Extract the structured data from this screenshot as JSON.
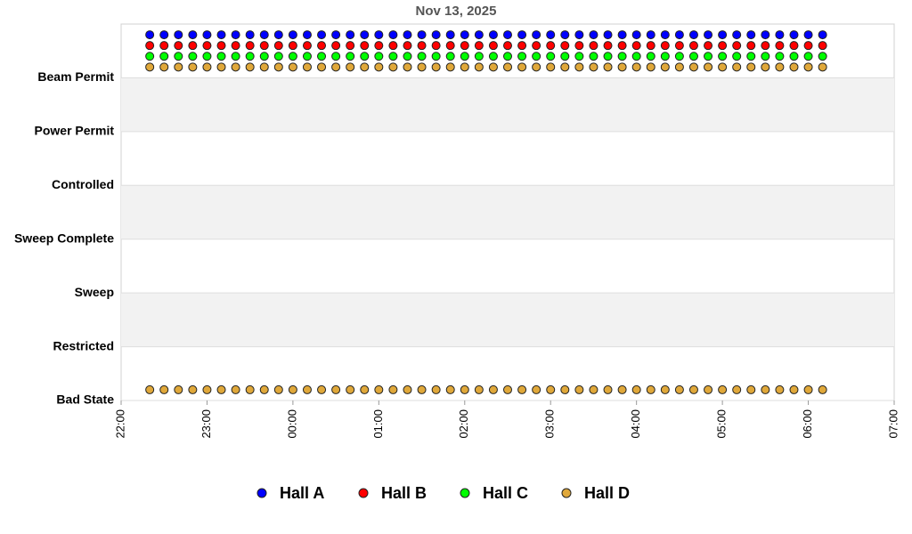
{
  "chart_data": {
    "type": "scatter",
    "title": "Nov 13, 2025",
    "x": [
      "22:20",
      "22:30",
      "22:40",
      "22:50",
      "23:00",
      "23:10",
      "23:20",
      "23:30",
      "23:40",
      "23:50",
      "00:00",
      "00:10",
      "00:20",
      "00:30",
      "00:40",
      "00:50",
      "01:00",
      "01:10",
      "01:20",
      "01:30",
      "01:40",
      "01:50",
      "02:00",
      "02:10",
      "02:20",
      "02:30",
      "02:40",
      "02:50",
      "03:00",
      "03:10",
      "03:20",
      "03:30",
      "03:40",
      "03:50",
      "04:00",
      "04:10",
      "04:20",
      "04:30",
      "04:40",
      "04:50",
      "05:00",
      "05:10",
      "05:20",
      "05:30",
      "05:40",
      "05:50",
      "06:00",
      "06:10"
    ],
    "series": [
      {
        "name": "Hall A",
        "color": "#0000ff",
        "values": [
          6.8,
          6.8,
          6.8,
          6.8,
          6.8,
          6.8,
          6.8,
          6.8,
          6.8,
          6.8,
          6.8,
          6.8,
          6.8,
          6.8,
          6.8,
          6.8,
          6.8,
          6.8,
          6.8,
          6.8,
          6.8,
          6.8,
          6.8,
          6.8,
          6.8,
          6.8,
          6.8,
          6.8,
          6.8,
          6.8,
          6.8,
          6.8,
          6.8,
          6.8,
          6.8,
          6.8,
          6.8,
          6.8,
          6.8,
          6.8,
          6.8,
          6.8,
          6.8,
          6.8,
          6.8,
          6.8,
          6.8,
          6.8
        ]
      },
      {
        "name": "Hall B",
        "color": "#ff0000",
        "values": [
          6.6,
          6.6,
          6.6,
          6.6,
          6.6,
          6.6,
          6.6,
          6.6,
          6.6,
          6.6,
          6.6,
          6.6,
          6.6,
          6.6,
          6.6,
          6.6,
          6.6,
          6.6,
          6.6,
          6.6,
          6.6,
          6.6,
          6.6,
          6.6,
          6.6,
          6.6,
          6.6,
          6.6,
          6.6,
          6.6,
          6.6,
          6.6,
          6.6,
          6.6,
          6.6,
          6.6,
          6.6,
          6.6,
          6.6,
          6.6,
          6.6,
          6.6,
          6.6,
          6.6,
          6.6,
          6.6,
          6.6,
          6.6
        ]
      },
      {
        "name": "Hall C",
        "color": "#00ff00",
        "values": [
          6.4,
          6.4,
          6.4,
          6.4,
          6.4,
          6.4,
          6.4,
          6.4,
          6.4,
          6.4,
          6.4,
          6.4,
          6.4,
          6.4,
          6.4,
          6.4,
          6.4,
          6.4,
          6.4,
          6.4,
          6.4,
          6.4,
          6.4,
          6.4,
          6.4,
          6.4,
          6.4,
          6.4,
          6.4,
          6.4,
          6.4,
          6.4,
          6.4,
          6.4,
          6.4,
          6.4,
          6.4,
          6.4,
          6.4,
          6.4,
          6.4,
          6.4,
          6.4,
          6.4,
          6.4,
          6.4,
          6.4,
          6.4
        ]
      },
      {
        "name": "Hall D",
        "color": "#e0a83a",
        "x": [
          "22:20",
          "22:30",
          "22:40",
          "22:50",
          "23:00",
          "23:10",
          "23:20",
          "23:30",
          "23:40",
          "23:50",
          "00:00",
          "00:10",
          "00:20",
          "00:30",
          "00:40",
          "00:50",
          "01:00",
          "01:10",
          "01:20",
          "01:30",
          "01:40",
          "01:50",
          "02:00",
          "02:10",
          "02:20",
          "02:30",
          "02:40",
          "02:50",
          "03:00",
          "03:10",
          "03:20",
          "03:30",
          "03:40",
          "03:50",
          "04:00",
          "04:10",
          "04:20",
          "04:30",
          "04:40",
          "04:50",
          "05:00",
          "05:10",
          "05:20",
          "05:30",
          "05:40",
          "05:50",
          "06:00",
          "06:10",
          "22:20",
          "22:30",
          "22:40",
          "22:50",
          "23:00",
          "23:10",
          "23:20",
          "23:30",
          "23:40",
          "23:50",
          "00:00",
          "00:10",
          "00:20",
          "00:30",
          "00:40",
          "00:50",
          "01:00",
          "01:10",
          "01:20",
          "01:30",
          "01:40",
          "01:50",
          "02:00",
          "02:10",
          "02:20",
          "02:30",
          "02:40",
          "02:50",
          "03:00",
          "03:10",
          "03:20",
          "03:30",
          "03:40",
          "03:50",
          "04:00",
          "04:10",
          "04:20",
          "04:30",
          "04:40",
          "04:50",
          "05:00",
          "05:10",
          "05:20",
          "05:30",
          "05:40",
          "05:50",
          "06:00",
          "06:10"
        ],
        "values": [
          6.2,
          6.2,
          6.2,
          6.2,
          6.2,
          6.2,
          6.2,
          6.2,
          6.2,
          6.2,
          6.2,
          6.2,
          6.2,
          6.2,
          6.2,
          6.2,
          6.2,
          6.2,
          6.2,
          6.2,
          6.2,
          6.2,
          6.2,
          6.2,
          6.2,
          6.2,
          6.2,
          6.2,
          6.2,
          6.2,
          6.2,
          6.2,
          6.2,
          6.2,
          6.2,
          6.2,
          6.2,
          6.2,
          6.2,
          6.2,
          6.2,
          6.2,
          6.2,
          6.2,
          6.2,
          6.2,
          6.2,
          6.2,
          0.2,
          0.2,
          0.2,
          0.2,
          0.2,
          0.2,
          0.2,
          0.2,
          0.2,
          0.2,
          0.2,
          0.2,
          0.2,
          0.2,
          0.2,
          0.2,
          0.2,
          0.2,
          0.2,
          0.2,
          0.2,
          0.2,
          0.2,
          0.2,
          0.2,
          0.2,
          0.2,
          0.2,
          0.2,
          0.2,
          0.2,
          0.2,
          0.2,
          0.2,
          0.2,
          0.2,
          0.2,
          0.2,
          0.2,
          0.2,
          0.2,
          0.2,
          0.2,
          0.2,
          0.2,
          0.2,
          0.2,
          0.2
        ]
      }
    ],
    "xlim": [
      "22:00",
      "07:00"
    ],
    "xticks": [
      "22:00",
      "23:00",
      "00:00",
      "01:00",
      "02:00",
      "03:00",
      "04:00",
      "05:00",
      "06:00",
      "07:00"
    ],
    "ylim": [
      0,
      7
    ],
    "yticks": [
      {
        "value": 0,
        "label": "Bad State"
      },
      {
        "value": 1,
        "label": "Restricted"
      },
      {
        "value": 2,
        "label": "Sweep"
      },
      {
        "value": 3,
        "label": "Sweep Complete"
      },
      {
        "value": 4,
        "label": "Controlled"
      },
      {
        "value": 5,
        "label": "Power Permit"
      },
      {
        "value": 6,
        "label": "Beam Permit"
      }
    ],
    "grid": true
  }
}
